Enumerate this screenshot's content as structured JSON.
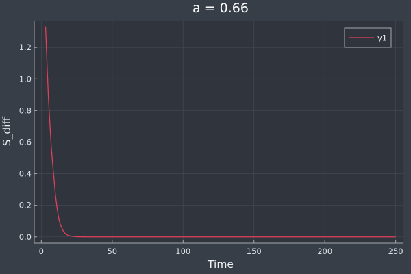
{
  "chart_data": {
    "type": "line",
    "title": "a = 0.66",
    "xlabel": "Time",
    "ylabel": "S_diff",
    "xlim": [
      -5,
      255
    ],
    "ylim": [
      -0.04,
      1.37
    ],
    "xticks": [
      0,
      50,
      100,
      150,
      200,
      250
    ],
    "yticks": [
      0.0,
      0.2,
      0.4,
      0.6,
      0.8,
      1.0,
      1.2
    ],
    "xtick_labels": [
      "0",
      "50",
      "100",
      "150",
      "200",
      "250"
    ],
    "ytick_labels": [
      "0.0",
      "0.2",
      "0.4",
      "0.6",
      "0.8",
      "1.0",
      "1.2"
    ],
    "grid": true,
    "legend_position": "top-right",
    "series": [
      {
        "name": "y1",
        "color": "#e0405a",
        "x": [
          2,
          3,
          4,
          5,
          6,
          7,
          8,
          9,
          10,
          11,
          12,
          13,
          14,
          15,
          16,
          17,
          18,
          19,
          20,
          22,
          24,
          26,
          28,
          30,
          35,
          40,
          50,
          75,
          100,
          150,
          200,
          250
        ],
        "y": [
          1.33,
          1.33,
          1.1,
          0.88,
          0.72,
          0.57,
          0.46,
          0.36,
          0.26,
          0.19,
          0.13,
          0.09,
          0.065,
          0.045,
          0.03,
          0.02,
          0.014,
          0.01,
          0.007,
          0.004,
          0.002,
          0.001,
          0.0006,
          0.0003,
          0.0001,
          0.0,
          0.0,
          0.0,
          0.0,
          0.0,
          0.0,
          0.0
        ]
      }
    ]
  },
  "colors": {
    "background": "#373e48",
    "plot_area": "#30343c",
    "axis": "#a5a9af",
    "grid": "#414650"
  }
}
